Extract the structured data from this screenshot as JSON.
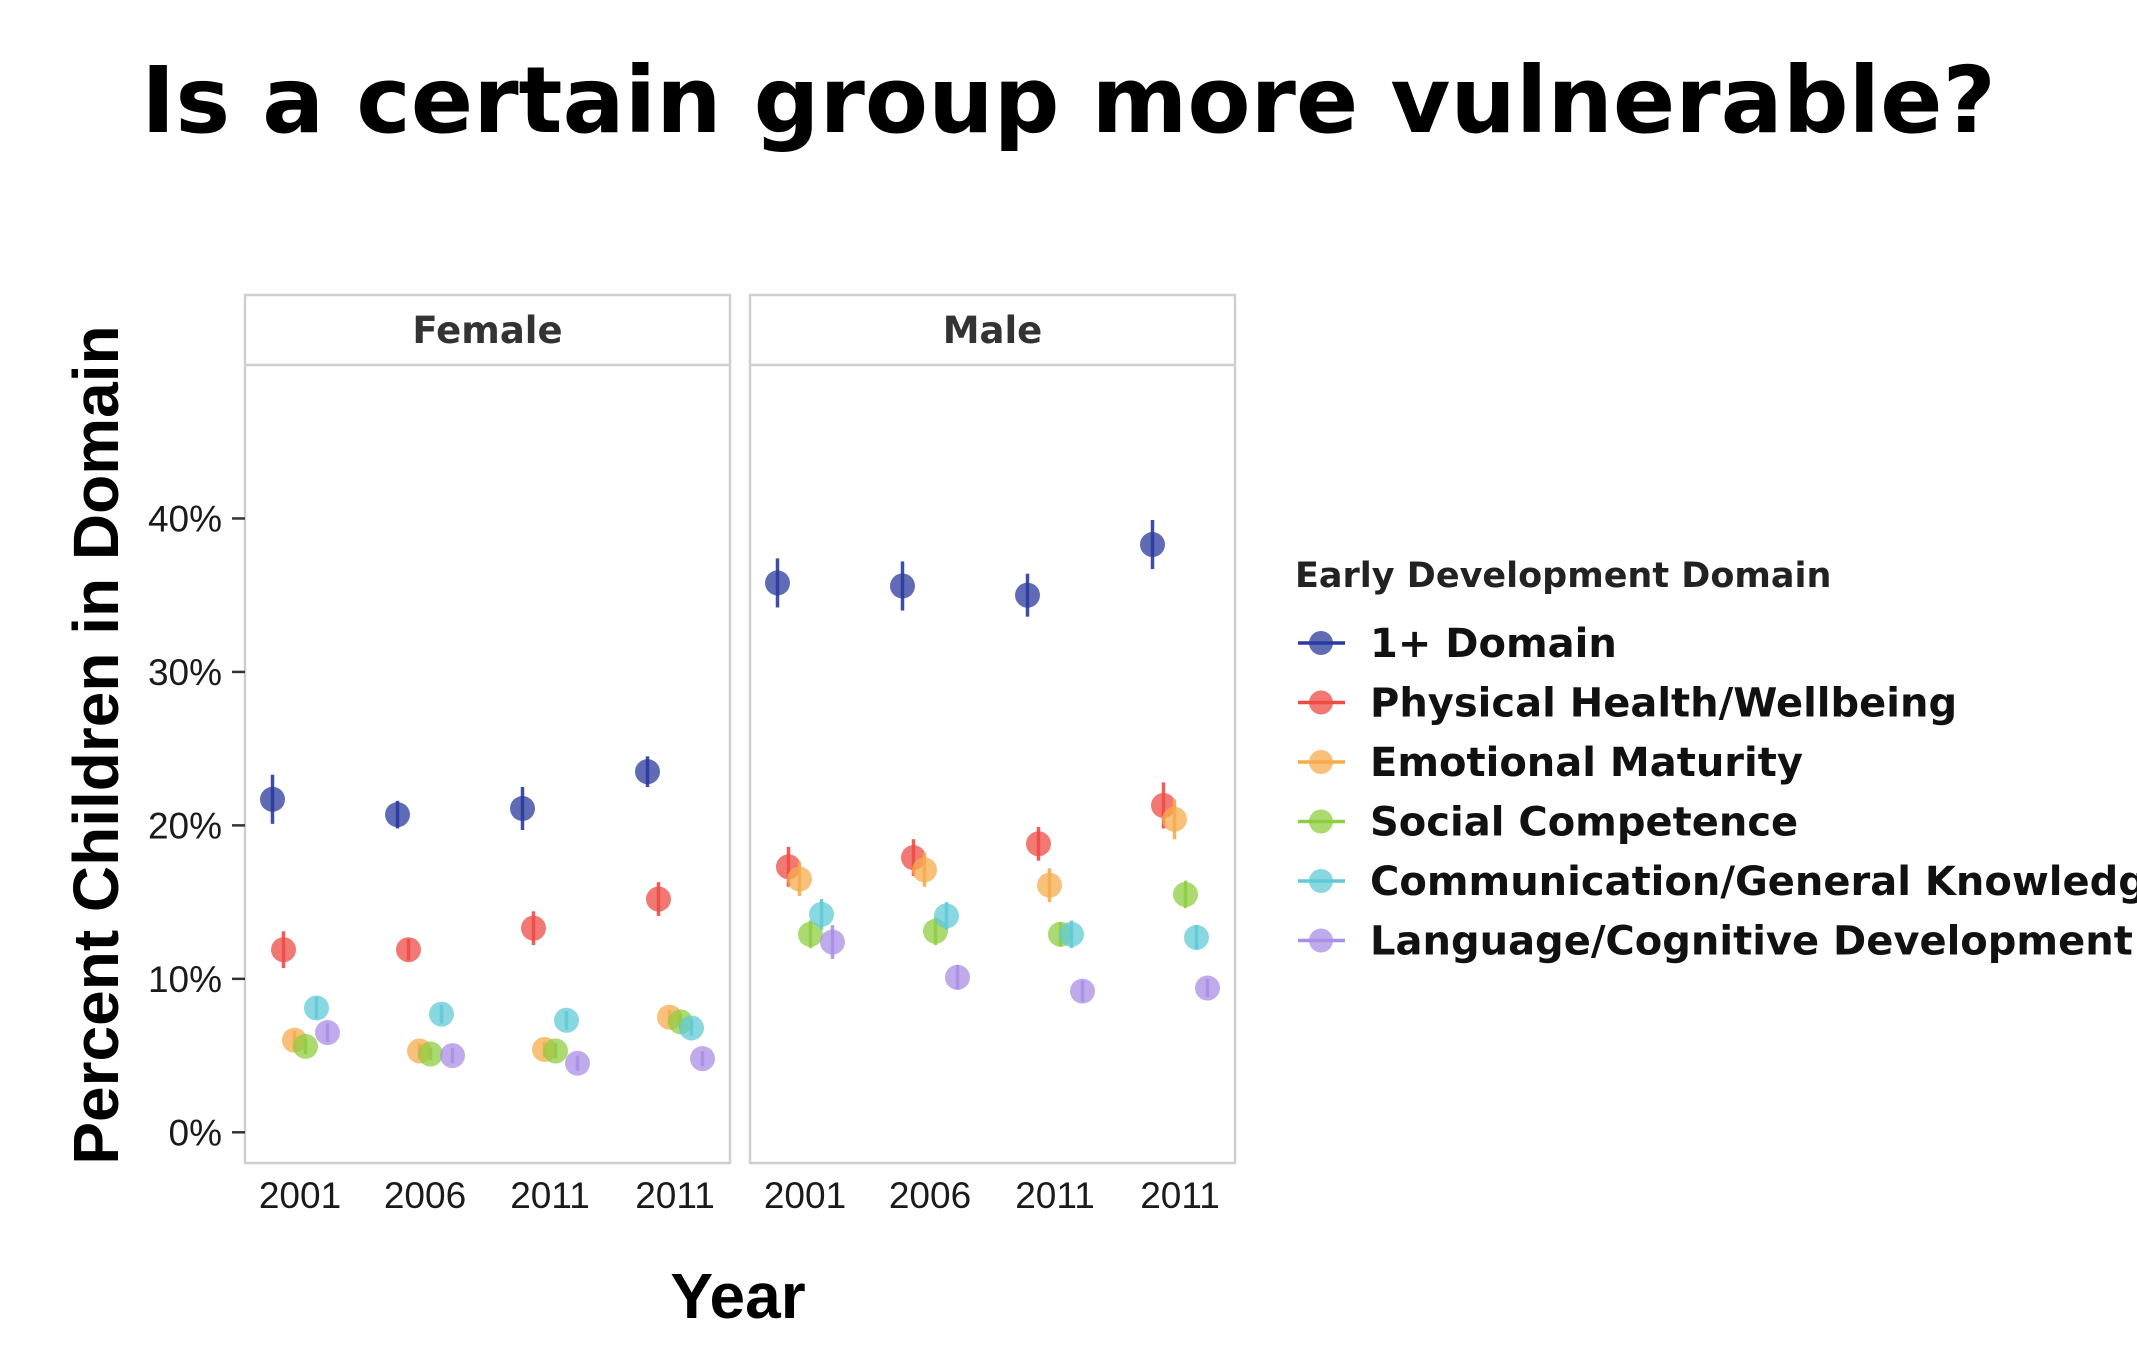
{
  "title": "Is a certain group more vulnerable?",
  "chart_data": {
    "type": "scatter",
    "title": "Is a certain group more vulnerable?",
    "xlabel": "Year",
    "ylabel": "Percent Children in Domain",
    "ylim": [
      -2,
      50
    ],
    "yticks": [
      0,
      10,
      20,
      30,
      40
    ],
    "ytick_labels": [
      "0%",
      "10%",
      "20%",
      "30%",
      "40%"
    ],
    "categories": [
      "2001",
      "2006",
      "2011",
      "2011"
    ],
    "grid": false,
    "legend_position": "right",
    "legend_title": "Early Development Domain",
    "facets": [
      {
        "name": "Female",
        "series": [
          {
            "name": "1+ Domain",
            "color": "#2b3a9e",
            "values": [
              21.7,
              20.7,
              21.1,
              23.5
            ],
            "err": [
              1.6,
              0.9,
              1.4,
              1.0
            ]
          },
          {
            "name": "Physical Health/Wellbeing",
            "color": "#ee4b45",
            "values": [
              11.9,
              11.9,
              13.3,
              15.2
            ],
            "err": [
              1.2,
              0.7,
              1.1,
              1.1
            ]
          },
          {
            "name": "Emotional Maturity",
            "color": "#f7ab4c",
            "values": [
              6.0,
              5.3,
              5.4,
              7.5
            ],
            "err": [
              0.6,
              0.5,
              0.5,
              0.5
            ]
          },
          {
            "name": "Social Competence",
            "color": "#8fce42",
            "values": [
              5.6,
              5.1,
              5.3,
              7.2
            ],
            "err": [
              0.5,
              0.4,
              0.5,
              0.5
            ]
          },
          {
            "name": "Communication/General Knowledge",
            "color": "#62c9d6",
            "values": [
              8.1,
              7.7,
              7.3,
              6.8
            ],
            "err": [
              0.7,
              0.6,
              0.6,
              0.5
            ]
          },
          {
            "name": "Language/Cognitive Development",
            "color": "#a98fe6",
            "values": [
              6.5,
              5.0,
              4.5,
              4.8
            ],
            "err": [
              0.6,
              0.5,
              0.5,
              0.5
            ]
          }
        ]
      },
      {
        "name": "Male",
        "series": [
          {
            "name": "1+ Domain",
            "color": "#2b3a9e",
            "values": [
              35.8,
              35.6,
              35.0,
              38.3
            ],
            "err": [
              1.6,
              1.6,
              1.4,
              1.6
            ]
          },
          {
            "name": "Physical Health/Wellbeing",
            "color": "#ee4b45",
            "values": [
              17.3,
              17.9,
              18.8,
              21.3
            ],
            "err": [
              1.3,
              1.2,
              1.1,
              1.5
            ]
          },
          {
            "name": "Emotional Maturity",
            "color": "#f7ab4c",
            "values": [
              16.5,
              17.1,
              16.1,
              20.4
            ],
            "err": [
              1.1,
              1.1,
              1.1,
              1.3
            ]
          },
          {
            "name": "Social Competence",
            "color": "#8fce42",
            "values": [
              12.9,
              13.1,
              12.9,
              15.5
            ],
            "err": [
              0.9,
              0.9,
              0.8,
              0.9
            ]
          },
          {
            "name": "Communication/General Knowledge",
            "color": "#62c9d6",
            "values": [
              14.2,
              14.1,
              12.9,
              12.7
            ],
            "err": [
              1.0,
              0.9,
              0.9,
              0.8
            ]
          },
          {
            "name": "Language/Cognitive Development",
            "color": "#a98fe6",
            "values": [
              12.4,
              10.1,
              9.2,
              9.4
            ],
            "err": [
              1.1,
              0.8,
              0.7,
              0.6
            ]
          }
        ]
      }
    ]
  }
}
